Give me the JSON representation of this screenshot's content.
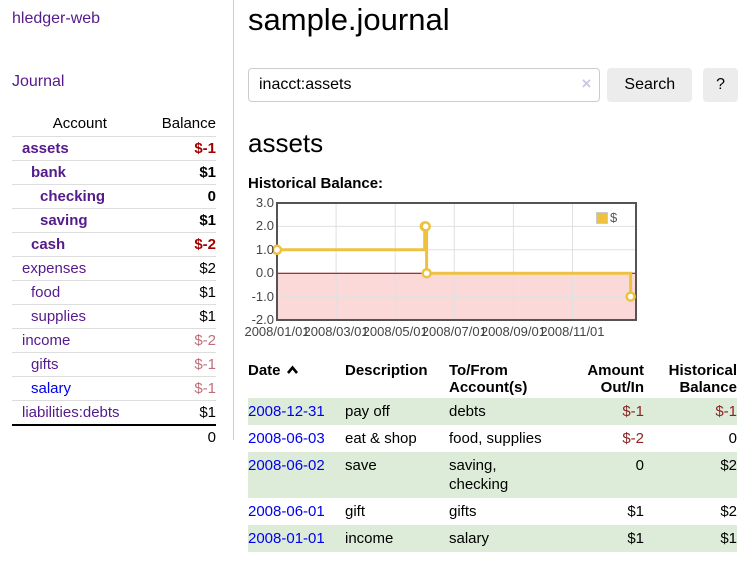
{
  "app": {
    "brand": "hledger-web",
    "nav_journal": "Journal"
  },
  "sidebar": {
    "accounts": {
      "col_account": "Account",
      "col_balance": "Balance",
      "rows": [
        {
          "name": "assets",
          "depth": 1,
          "bold": true,
          "balance": "$-1",
          "bal_style": "neg-strong",
          "link_style": "purple"
        },
        {
          "name": "bank",
          "depth": 2,
          "bold": true,
          "balance": "$1",
          "bal_style": "pos",
          "link_style": "purple"
        },
        {
          "name": "checking",
          "depth": 3,
          "bold": true,
          "balance": "0",
          "bal_style": "pos",
          "link_style": "purple"
        },
        {
          "name": "saving",
          "depth": 3,
          "bold": true,
          "balance": "$1",
          "bal_style": "pos",
          "link_style": "purple"
        },
        {
          "name": "cash",
          "depth": 2,
          "bold": true,
          "balance": "$-2",
          "bal_style": "neg-strong",
          "link_style": "purple"
        },
        {
          "name": "expenses",
          "depth": 1,
          "bold": false,
          "balance": "$2",
          "bal_style": "pos",
          "link_style": "purple"
        },
        {
          "name": "food",
          "depth": 2,
          "bold": false,
          "balance": "$1",
          "bal_style": "pos",
          "link_style": "purple"
        },
        {
          "name": "supplies",
          "depth": 2,
          "bold": false,
          "balance": "$1",
          "bal_style": "pos",
          "link_style": "purple"
        },
        {
          "name": "income",
          "depth": 1,
          "bold": false,
          "balance": "$-2",
          "bal_style": "neg-soft",
          "link_style": "purple"
        },
        {
          "name": "gifts",
          "depth": 2,
          "bold": false,
          "balance": "$-1",
          "bal_style": "neg-soft",
          "link_style": "purple"
        },
        {
          "name": "salary",
          "depth": 2,
          "bold": false,
          "balance": "$-1",
          "bal_style": "neg-soft",
          "link_style": "blue"
        },
        {
          "name": "liabilities:debts",
          "depth": 1,
          "bold": false,
          "balance": "$1",
          "bal_style": "pos",
          "link_style": "purple"
        }
      ],
      "total": "0"
    }
  },
  "main": {
    "title": "sample.journal",
    "search": {
      "value": "inacct:assets",
      "clear_icon": "×",
      "button_label": "Search",
      "help_label": "?"
    },
    "account_title": "assets",
    "chart_label": "Historical Balance:"
  },
  "chart_data": {
    "type": "line",
    "title": "Historical Balance",
    "step": true,
    "legend": [
      {
        "label": "$",
        "color": "#edc240"
      }
    ],
    "y_ticks": [
      3.0,
      2.0,
      1.0,
      0.0,
      -1.0,
      -2.0
    ],
    "ylim": [
      -2,
      3
    ],
    "x_ticks": [
      "2008/01/01",
      "2008/03/01",
      "2008/05/01",
      "2008/07/01",
      "2008/09/01",
      "2008/11/01"
    ],
    "points": [
      {
        "date": "2008-01-01",
        "value": 1
      },
      {
        "date": "2008-06-01",
        "value": 2
      },
      {
        "date": "2008-06-02",
        "value": 2
      },
      {
        "date": "2008-06-03",
        "value": 0
      },
      {
        "date": "2008-12-31",
        "value": -1
      }
    ],
    "series_color": "#edc240",
    "marker_fill": "#ffffff",
    "grid_color": "#e0e0e0",
    "border_color": "#545454",
    "negative_region_color": "#fbd9d9",
    "zero_line_color": "#800000"
  },
  "register": {
    "columns": [
      {
        "key": "date",
        "lines": [
          "Date"
        ],
        "align": "l",
        "sortable": true
      },
      {
        "key": "description",
        "lines": [
          "Description"
        ],
        "align": "l",
        "sortable": false
      },
      {
        "key": "accounts",
        "lines": [
          "To/From",
          "Account(s)"
        ],
        "align": "l",
        "sortable": false
      },
      {
        "key": "amount",
        "lines": [
          "Amount",
          "Out/In"
        ],
        "align": "r",
        "sortable": false
      },
      {
        "key": "balance",
        "lines": [
          "Historical",
          "Balance"
        ],
        "align": "r",
        "sortable": false
      }
    ],
    "rows": [
      {
        "date": "2008-12-31",
        "description": "pay off",
        "accounts": [
          "debts"
        ],
        "amount": "$-1",
        "amount_neg": true,
        "balance": "$-1",
        "balance_neg": true,
        "shaded": true
      },
      {
        "date": "2008-06-03",
        "description": "eat & shop",
        "accounts": [
          "food, supplies"
        ],
        "amount": "$-2",
        "amount_neg": true,
        "balance": "0",
        "balance_neg": false,
        "shaded": false
      },
      {
        "date": "2008-06-02",
        "description": "save",
        "accounts": [
          "saving,",
          "checking"
        ],
        "amount": "0",
        "amount_neg": false,
        "balance": "$2",
        "balance_neg": false,
        "shaded": true
      },
      {
        "date": "2008-06-01",
        "description": "gift",
        "accounts": [
          "gifts"
        ],
        "amount": "$1",
        "amount_neg": false,
        "balance": "$2",
        "balance_neg": false,
        "shaded": false
      },
      {
        "date": "2008-01-01",
        "description": "income",
        "accounts": [
          "salary"
        ],
        "amount": "$1",
        "amount_neg": false,
        "balance": "$1",
        "balance_neg": false,
        "shaded": true
      }
    ]
  },
  "colors": {
    "link_purple": "#551a8b",
    "link_blue": "#0000ee",
    "negative_strong": "#a40000",
    "negative_soft": "#bf6f79",
    "negative_table": "#8b2323",
    "row_stripe_green": "#ddecd9",
    "chart_series_gold": "#edc240"
  }
}
